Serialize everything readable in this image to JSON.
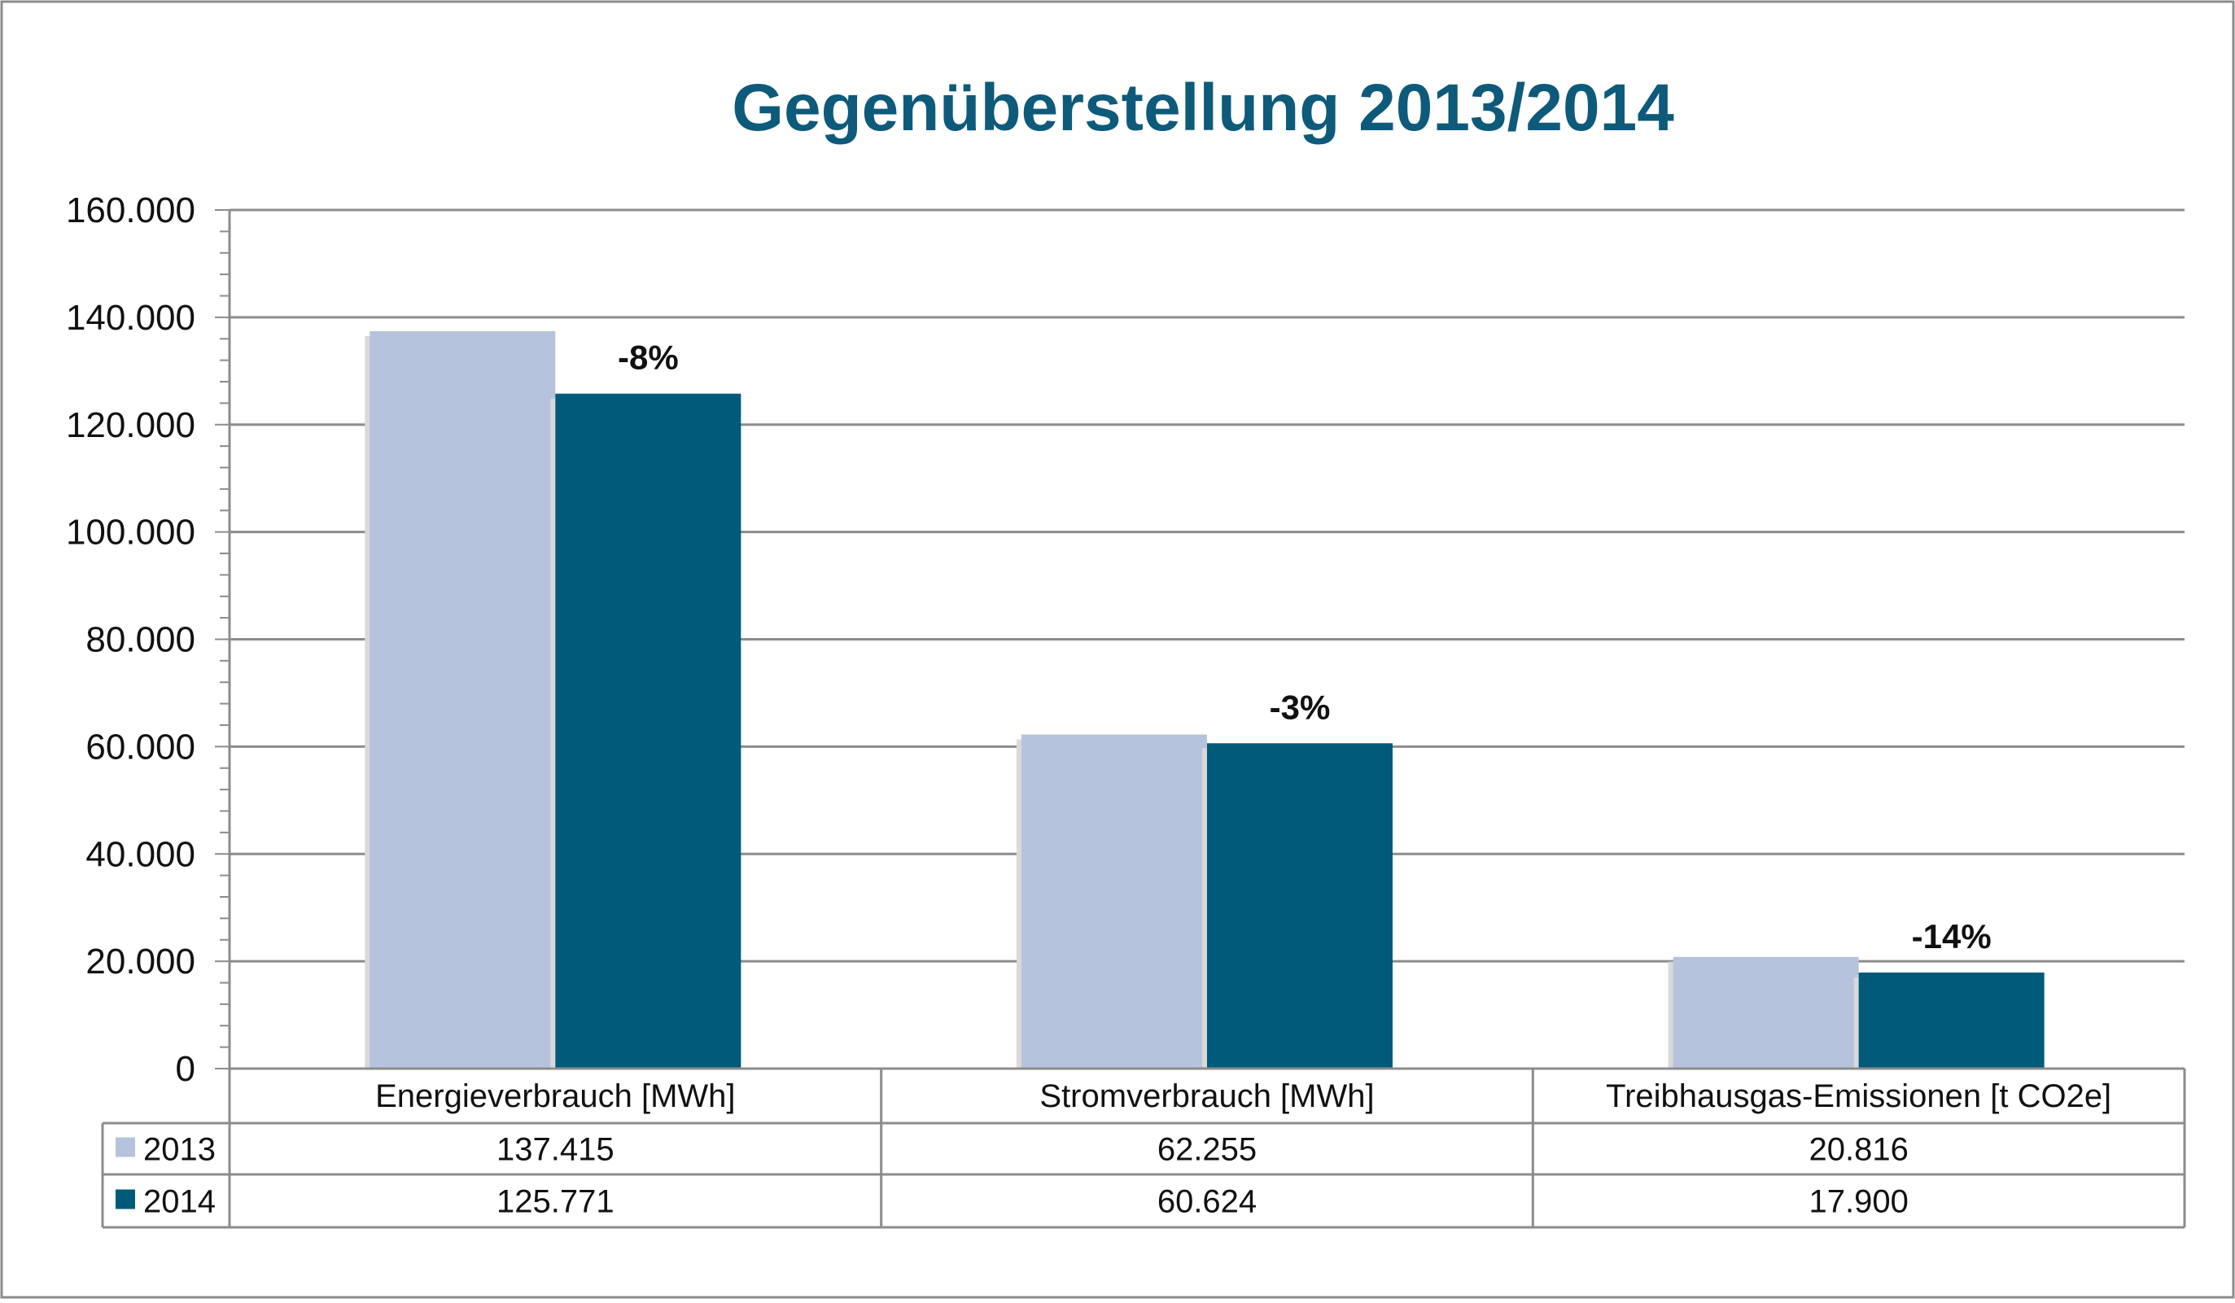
{
  "colors": {
    "title": "#0e5a7a",
    "series_2013": "#b6c3dc",
    "series_2014": "#005a7a",
    "gridline": "#8c8c8c",
    "frame": "#8c8c8c"
  },
  "chart_data": {
    "type": "bar",
    "title": "Gegenüberstellung 2013/2014",
    "categories": [
      "Energieverbrauch [MWh]",
      "Stromverbrauch [MWh]",
      "Treibhausgas-Emissionen [t CO2e]"
    ],
    "series": [
      {
        "name": "2013",
        "values": [
          137415,
          62255,
          20816
        ],
        "labels": [
          "137.415",
          "62.255",
          "20.816"
        ]
      },
      {
        "name": "2014",
        "values": [
          125771,
          60624,
          17900
        ],
        "labels": [
          "125.771",
          "60.624",
          "17.900"
        ]
      }
    ],
    "annotations": [
      "-8%",
      "-3%",
      "-14%"
    ],
    "ylim": [
      0,
      160000
    ],
    "yticks": [
      0,
      20000,
      40000,
      60000,
      80000,
      100000,
      120000,
      140000,
      160000
    ],
    "ytick_labels": [
      "0",
      "20.000",
      "40.000",
      "60.000",
      "80.000",
      "100.000",
      "120.000",
      "140.000",
      "160.000"
    ],
    "grid": true,
    "legend": "data-table"
  }
}
